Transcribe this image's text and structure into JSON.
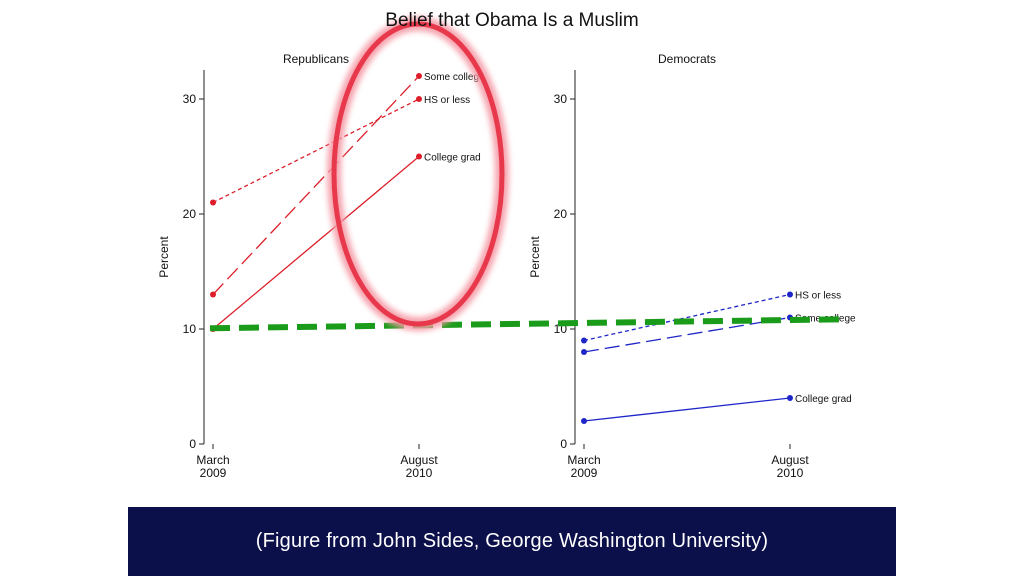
{
  "title": "Belief that Obama Is a Muslim",
  "caption": "(Figure from John Sides, George Washington University)",
  "colors": {
    "republican": "#dd1e2a",
    "democrat": "#1f26c8",
    "highlight_ellipse": "#e8394c",
    "reference_line": "#1a9c1a",
    "caption_bg": "#0b0f4a"
  },
  "chart_data": [
    {
      "type": "line",
      "title": "Republicans",
      "ylabel": "Percent",
      "ylim": [
        0,
        32
      ],
      "yticks": [
        0,
        10,
        20,
        30
      ],
      "categories": [
        {
          "line1": "March",
          "line2": "2009"
        },
        {
          "line1": "August",
          "line2": "2010"
        }
      ],
      "series": [
        {
          "name": "Some college",
          "values": [
            13,
            32
          ],
          "dash": "long"
        },
        {
          "name": "HS or less",
          "values": [
            21,
            30
          ],
          "dash": "short"
        },
        {
          "name": "College grad",
          "values": [
            10,
            25
          ],
          "dash": "solid"
        }
      ]
    },
    {
      "type": "line",
      "title": "Democrats",
      "ylabel": "Percent",
      "ylim": [
        0,
        32
      ],
      "yticks": [
        0,
        10,
        20,
        30
      ],
      "categories": [
        {
          "line1": "March",
          "line2": "2009"
        },
        {
          "line1": "August",
          "line2": "2010"
        }
      ],
      "series": [
        {
          "name": "HS or less",
          "values": [
            9,
            13
          ],
          "dash": "short"
        },
        {
          "name": "Some college",
          "values": [
            8,
            11
          ],
          "dash": "long"
        },
        {
          "name": "College grad",
          "values": [
            2,
            4
          ],
          "dash": "solid"
        }
      ]
    }
  ],
  "annotations": {
    "reference_line_value": 10.5
  }
}
